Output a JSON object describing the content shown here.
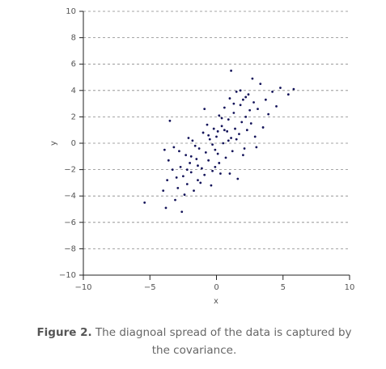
{
  "chart_data": {
    "type": "scatter",
    "x_label": "x",
    "y_label": "y",
    "color": "#14145a",
    "grid": true,
    "xlim": [
      -10,
      10
    ],
    "ylim": [
      -10,
      10
    ],
    "xticks": [
      {
        "value": -10,
        "label": "−10"
      },
      {
        "value": -5,
        "label": "−5"
      },
      0,
      5,
      10
    ],
    "yticks": [
      {
        "value": -10,
        "label": "−10"
      },
      {
        "value": -8,
        "label": "−8"
      },
      {
        "value": -6,
        "label": "−6"
      },
      {
        "value": -4,
        "label": "−4"
      },
      {
        "value": -2,
        "label": "−2"
      },
      0,
      2,
      4,
      6,
      8,
      10
    ],
    "x": [
      -5.4,
      -3.8,
      -2.6,
      1.1,
      2.7,
      5.8,
      -3.5,
      -4.0,
      -3.7,
      -3.6,
      -3.9,
      -3.2,
      -3.1,
      -2.9,
      -2.7,
      -2.5,
      -2.3,
      -2.2,
      -2.0,
      -1.9,
      -1.8,
      -1.7,
      -1.5,
      -1.4,
      -1.3,
      -1.1,
      -1.0,
      -0.9,
      -0.8,
      -0.7,
      -0.6,
      -0.5,
      -0.4,
      -0.3,
      -0.2,
      -0.1,
      0.0,
      0.1,
      0.2,
      0.3,
      0.4,
      0.5,
      0.6,
      0.7,
      0.8,
      0.9,
      1.0,
      1.1,
      1.2,
      1.3,
      1.4,
      1.5,
      1.6,
      1.7,
      1.8,
      1.9,
      2.0,
      2.1,
      2.2,
      2.3,
      2.4,
      2.6,
      2.8,
      2.9,
      3.1,
      3.3,
      3.5,
      3.7,
      3.9,
      4.2,
      4.5,
      4.8,
      5.4,
      -3.3,
      -2.8,
      -2.4,
      -2.1,
      -1.6,
      -1.2,
      -0.9,
      -0.3,
      0.2,
      0.6,
      1.0,
      1.5,
      2.0,
      2.5,
      3.0,
      -0.6,
      0.9,
      -1.9,
      1.3,
      -2.2,
      0.4,
      2.2,
      -0.1,
      -3.0,
      1.8,
      0.1,
      -1.4
    ],
    "series": [
      {
        "values": [
          -4.5,
          -4.9,
          -5.2,
          5.5,
          4.9,
          4.1,
          1.7,
          -3.6,
          -2.8,
          -1.3,
          -0.5,
          -0.3,
          -4.3,
          -3.4,
          -1.8,
          -2.5,
          -0.9,
          -3.1,
          -1.5,
          -2.2,
          0.2,
          -3.6,
          -1.2,
          -2.8,
          -0.4,
          -1.9,
          0.8,
          -2.4,
          -0.7,
          1.4,
          -1.3,
          0.3,
          -3.2,
          -0.1,
          1.1,
          -1.8,
          0.5,
          -0.8,
          2.1,
          -2.3,
          1.3,
          0.0,
          2.7,
          -1.1,
          0.9,
          1.8,
          3.4,
          0.4,
          -0.6,
          2.3,
          1.1,
          3.9,
          -2.7,
          0.7,
          2.9,
          1.6,
          3.3,
          -0.4,
          2.0,
          1.0,
          3.7,
          1.5,
          3.1,
          0.5,
          2.6,
          4.5,
          1.2,
          3.3,
          2.2,
          3.9,
          2.8,
          4.2,
          3.7,
          -2.0,
          -0.6,
          -3.9,
          0.4,
          -0.2,
          -3.0,
          2.6,
          -2.1,
          -1.5,
          1.0,
          -2.3,
          0.3,
          -0.9,
          2.5,
          -0.3,
          0.6,
          0.2,
          -1.0,
          3.0,
          -2.0,
          1.9,
          3.5,
          -0.5,
          -2.6,
          4.0,
          0.9,
          -1.7
        ]
      }
    ]
  },
  "caption": {
    "label": "Figure 2.",
    "text": "The diagnoal spread of the data is captured by the covariance."
  }
}
